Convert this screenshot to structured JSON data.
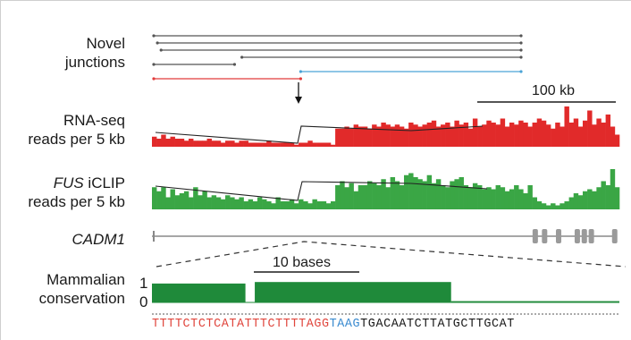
{
  "labels": {
    "novel_junctions_1": "Novel",
    "novel_junctions_2": "junctions",
    "rnaseq_1": "RNA-seq",
    "rnaseq_2": "reads per 5 kb",
    "fus_it": "FUS",
    "fus_rest": " iCLIP",
    "fus_2": "reads per 5 kb",
    "gene": "CADM1",
    "conservation_1": "Mammalian",
    "conservation_2": "conservation",
    "axis_1": "1",
    "axis_0": "0"
  },
  "scale_bars": {
    "top": "100 kb",
    "bottom": "10 bases"
  },
  "colors": {
    "rnaseq": "#e12a2a",
    "fus": "#3aa645",
    "conservation": "#1f8a3a",
    "junction_red": "#e23b3b",
    "junction_blue": "#4aa3d6",
    "junction_gray": "#555555",
    "seq_red": "#e0463d",
    "seq_blue": "#3b8bd0",
    "seq_black": "#1a1a1a"
  },
  "junctions": [
    {
      "start": 0.0,
      "end": 1.0,
      "color": "gray"
    },
    {
      "start": 0.01,
      "end": 1.0,
      "color": "gray"
    },
    {
      "start": 0.02,
      "end": 1.0,
      "color": "gray"
    },
    {
      "start": 0.24,
      "end": 1.0,
      "color": "gray"
    },
    {
      "start": 0.0,
      "end": 0.22,
      "color": "gray"
    },
    {
      "start": 0.4,
      "end": 1.0,
      "color": "blue"
    },
    {
      "start": 0.0,
      "end": 0.4,
      "color": "red"
    }
  ],
  "rnaseq_bins": [
    5,
    4,
    6,
    4,
    5,
    4,
    4,
    3,
    4,
    3,
    3,
    3,
    4,
    3,
    3,
    2,
    3,
    3,
    2,
    3,
    3,
    2,
    2,
    2,
    2,
    3,
    2,
    2,
    2,
    2,
    2,
    1,
    2,
    2,
    3,
    2,
    2,
    2,
    2,
    1,
    9,
    9,
    10,
    9,
    11,
    10,
    10,
    9,
    11,
    10,
    12,
    11,
    10,
    11,
    10,
    9,
    12,
    11,
    10,
    11,
    12,
    13,
    10,
    11,
    12,
    10,
    13,
    11,
    12,
    9,
    14,
    10,
    11,
    13,
    12,
    11,
    14,
    10,
    12,
    11,
    13,
    12,
    10,
    12,
    14,
    13,
    11,
    9,
    12,
    10,
    20,
    12,
    14,
    10,
    13,
    18,
    11,
    14,
    12,
    16,
    10,
    6
  ],
  "fus_bins": [
    11,
    9,
    11,
    6,
    10,
    7,
    8,
    9,
    6,
    11,
    7,
    9,
    6,
    7,
    6,
    5,
    7,
    6,
    5,
    6,
    4,
    5,
    4,
    6,
    5,
    4,
    3,
    6,
    4,
    4,
    5,
    3,
    5,
    4,
    3,
    5,
    4,
    4,
    3,
    4,
    12,
    14,
    11,
    13,
    9,
    12,
    12,
    14,
    13,
    12,
    15,
    11,
    16,
    14,
    12,
    17,
    18,
    16,
    15,
    14,
    17,
    13,
    15,
    12,
    11,
    14,
    15,
    16,
    12,
    11,
    13,
    12,
    10,
    11,
    10,
    12,
    11,
    9,
    10,
    12,
    10,
    8,
    12,
    6,
    4,
    3,
    2,
    3,
    2,
    3,
    4,
    6,
    8,
    7,
    9,
    10,
    9,
    11,
    14,
    12,
    20,
    11
  ],
  "gene_exons": [
    0.82,
    0.84,
    0.87,
    0.91,
    0.925,
    0.94,
    0.99
  ],
  "conservation_blocks": [
    {
      "start": 0.0,
      "end": 0.2,
      "value": 0.88
    },
    {
      "start": 0.22,
      "end": 0.64,
      "value": 0.95
    },
    {
      "start": 0.64,
      "end": 1.0,
      "value": 0.06
    }
  ],
  "sequence": [
    {
      "text": "TTTTCTCTCATATTTCTTTTAGG",
      "color": "red"
    },
    {
      "text": "TAAG",
      "color": "blue"
    },
    {
      "text": "TGACAATCTTATGCTTGCAT",
      "color": "black"
    }
  ]
}
